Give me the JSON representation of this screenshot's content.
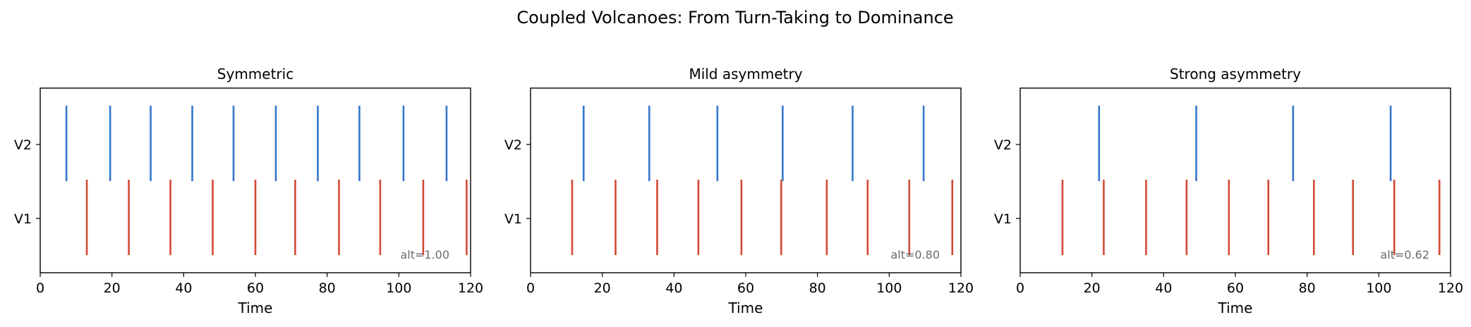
{
  "suptitle": "Coupled Volcanoes: From Turn-Taking to Dominance",
  "chart_data": [
    {
      "type": "event-raster",
      "title": "Symmetric",
      "xlabel": "Time",
      "ylabel": "",
      "xlim": [
        0,
        120
      ],
      "xticks": [
        0,
        20,
        40,
        60,
        80,
        100,
        120
      ],
      "rows": [
        "V1",
        "V2"
      ],
      "annotation": "alt=1.00",
      "series": [
        {
          "name": "V2",
          "color": "#3377cc",
          "events": [
            7.3,
            19.5,
            30.8,
            42.4,
            53.9,
            65.7,
            77.4,
            89.0,
            101.3,
            113.3
          ]
        },
        {
          "name": "V1",
          "color": "#d24a35",
          "events": [
            13.0,
            24.7,
            36.3,
            48.1,
            60.0,
            71.1,
            83.3,
            94.8,
            106.8,
            118.9
          ]
        }
      ]
    },
    {
      "type": "event-raster",
      "title": "Mild asymmetry",
      "xlabel": "Time",
      "ylabel": "",
      "xlim": [
        0,
        120
      ],
      "xticks": [
        0,
        20,
        40,
        60,
        80,
        100,
        120
      ],
      "rows": [
        "V1",
        "V2"
      ],
      "annotation": "alt=0.80",
      "series": [
        {
          "name": "V2",
          "color": "#3377cc",
          "events": [
            14.8,
            33.1,
            52.1,
            70.3,
            89.8,
            109.6
          ]
        },
        {
          "name": "V1",
          "color": "#d24a35",
          "events": [
            11.6,
            23.7,
            35.3,
            46.8,
            58.8,
            69.9,
            82.6,
            94.0,
            105.6,
            117.6
          ]
        }
      ]
    },
    {
      "type": "event-raster",
      "title": "Strong asymmetry",
      "xlabel": "Time",
      "ylabel": "",
      "xlim": [
        0,
        120
      ],
      "xticks": [
        0,
        20,
        40,
        60,
        80,
        100,
        120
      ],
      "rows": [
        "V1",
        "V2"
      ],
      "annotation": "alt=0.62",
      "series": [
        {
          "name": "V2",
          "color": "#3377cc",
          "events": [
            22.0,
            49.1,
            76.1,
            103.3
          ]
        },
        {
          "name": "V1",
          "color": "#d24a35",
          "events": [
            11.8,
            23.3,
            35.1,
            46.4,
            58.2,
            69.2,
            81.9,
            92.8,
            104.3,
            116.9
          ]
        }
      ]
    }
  ]
}
